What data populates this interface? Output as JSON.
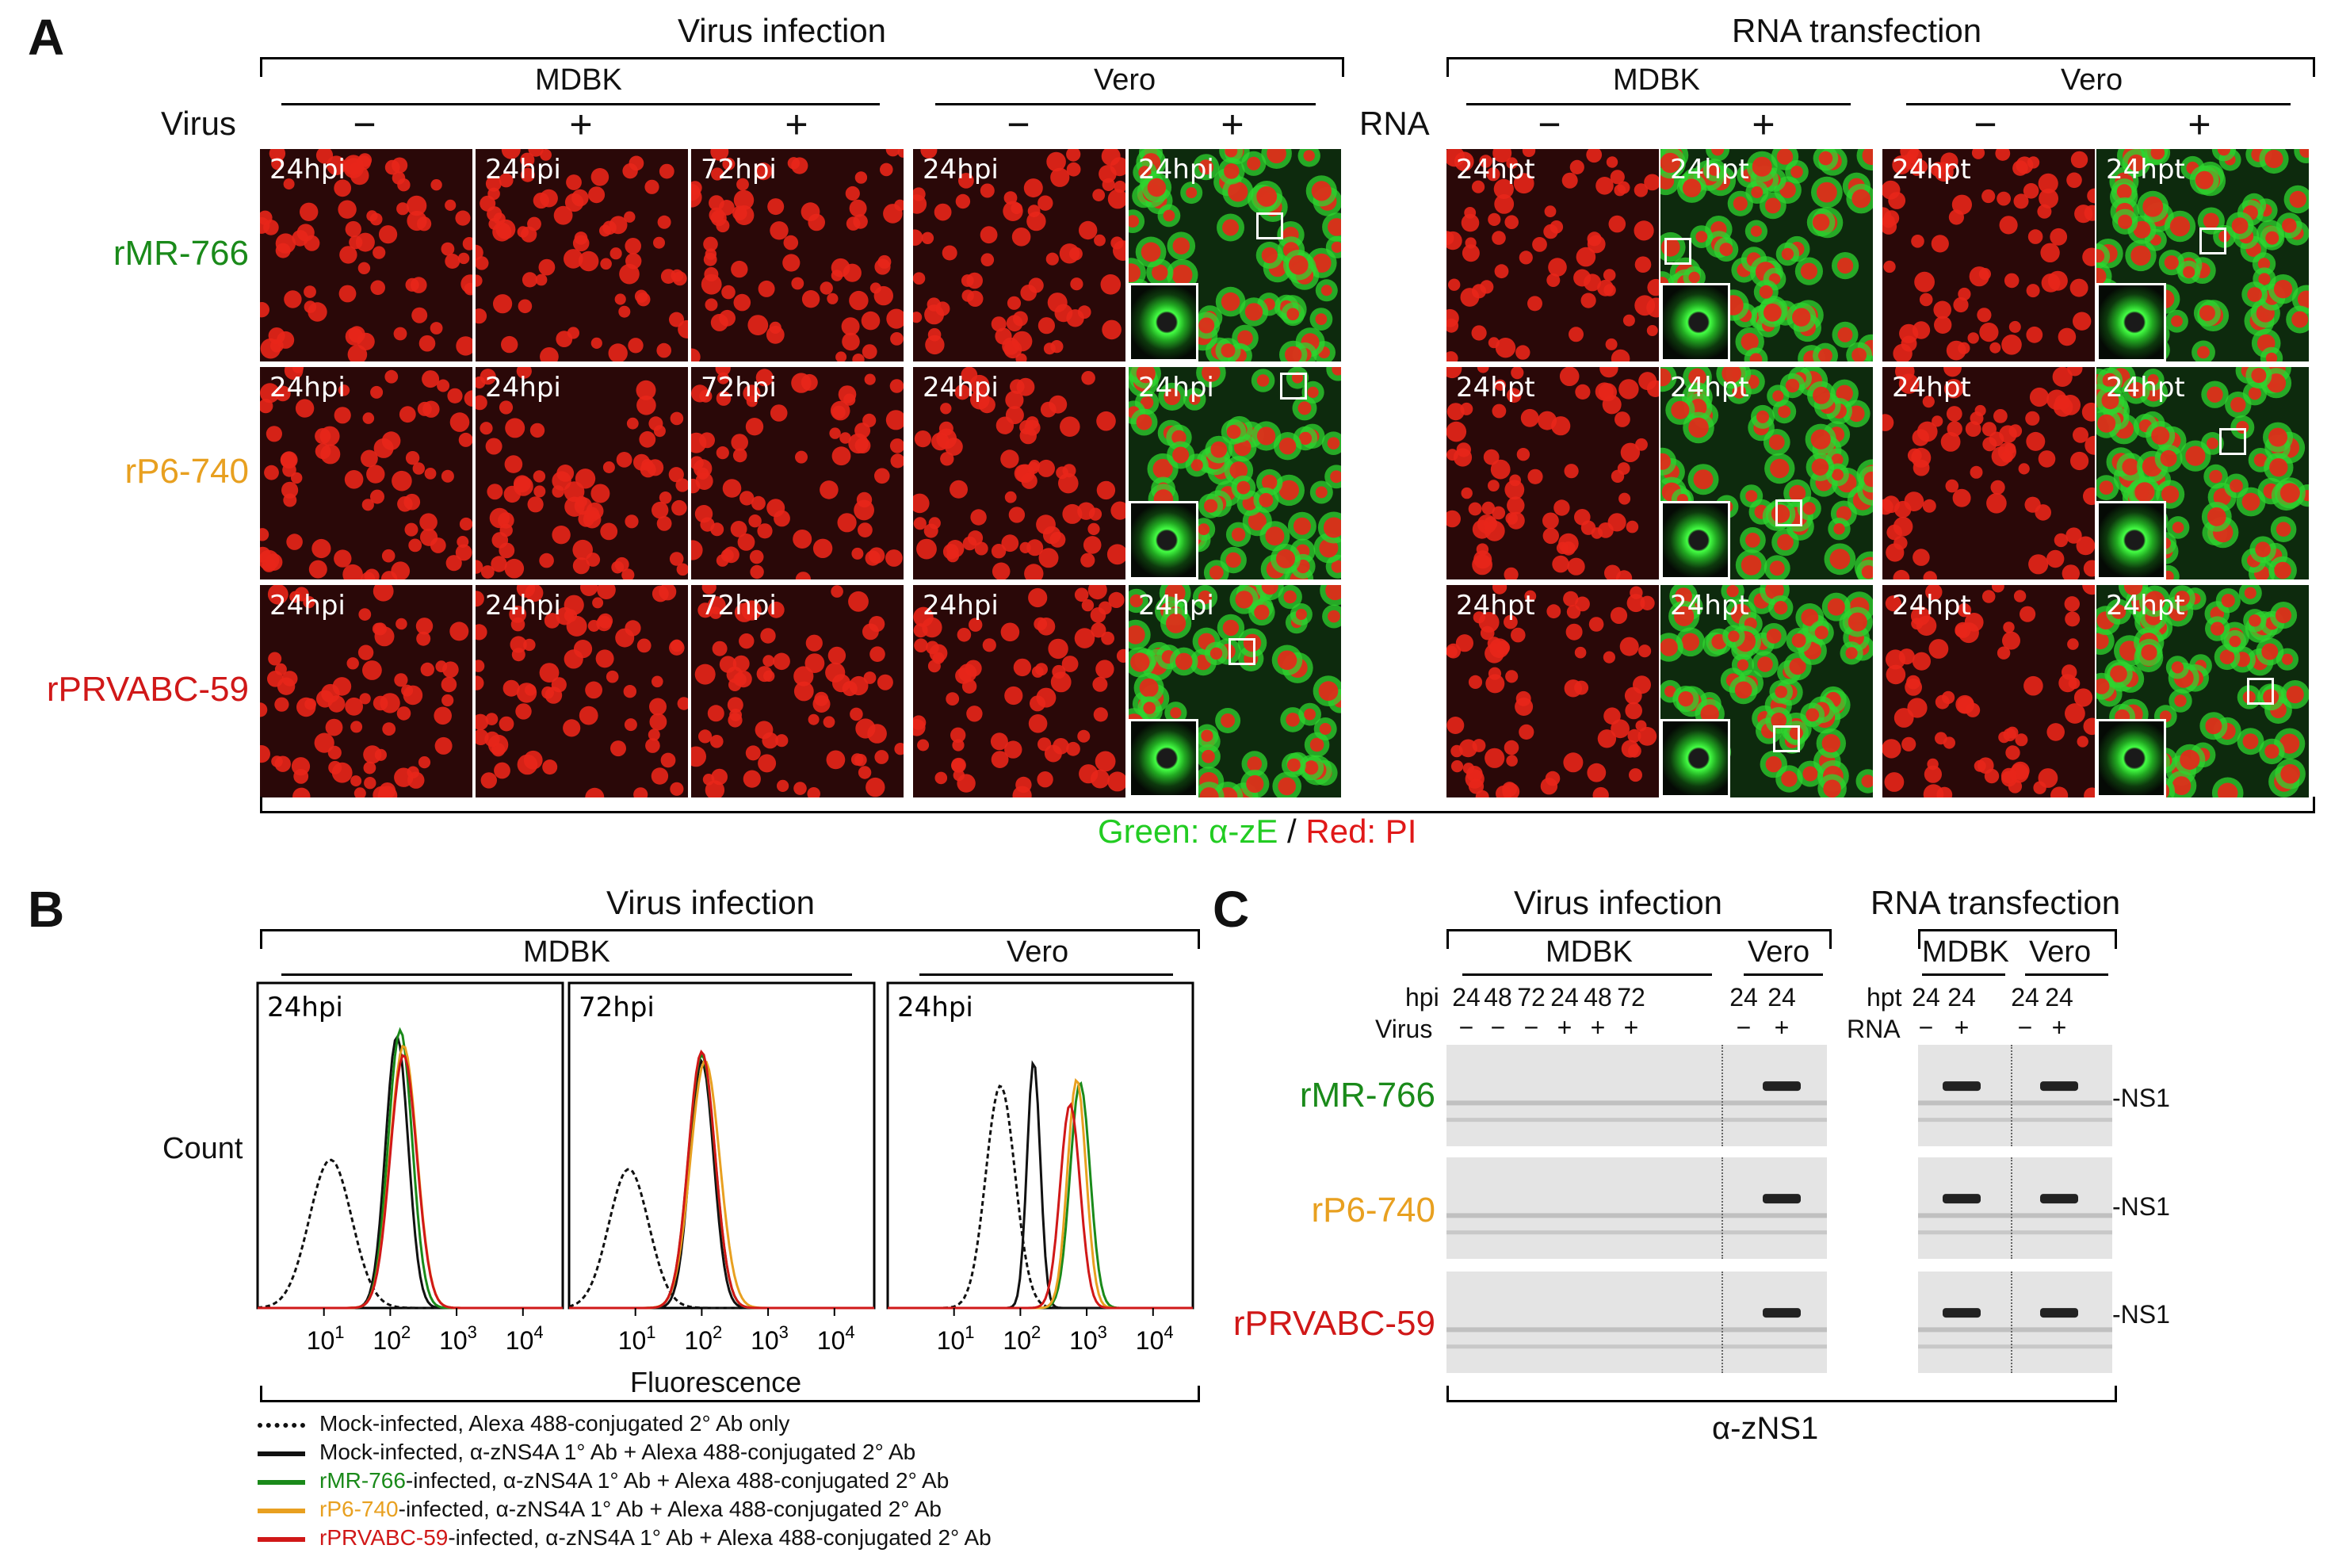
{
  "panel_a": {
    "label": "A",
    "virus_infection": "Virus infection",
    "rna_transfection": "RNA transfection",
    "mdbk": "MDBK",
    "vero": "Vero",
    "virus_row": "Virus",
    "rna_row": "RNA",
    "minus": "−",
    "plus": "+",
    "rows": [
      "rMR-766",
      "rP6-740",
      "rPRVABC-59"
    ],
    "row_colors": [
      "#1a8a1a",
      "#e8a020",
      "#d01818"
    ],
    "hpi24": "24hpi",
    "hpi72": "72hpi",
    "hpt24": "24hpt",
    "caption_green": "Green: α-zE",
    "caption_sep": " / ",
    "caption_red": "Red: PI"
  },
  "panel_b": {
    "label": "B",
    "title": "Virus infection",
    "mdbk": "MDBK",
    "vero": "Vero",
    "plots": [
      "24hpi",
      "72hpi",
      "24hpi"
    ],
    "ylabel": "Count",
    "xlabel": "Fluorescence",
    "tick_base": "10",
    "tick_exps": [
      "1",
      "2",
      "3",
      "4"
    ],
    "legend": [
      {
        "prefix": "",
        "text": "Mock-infected, Alexa 488-conjugated 2° Ab only",
        "color": "#111111",
        "dashed": true
      },
      {
        "prefix": "",
        "text": "Mock-infected, α-zNS4A 1° Ab + Alexa 488-conjugated 2° Ab",
        "color": "#111111",
        "dashed": false
      },
      {
        "prefix": "rMR-766",
        "text": "-infected, α-zNS4A 1° Ab + Alexa 488-conjugated 2° Ab",
        "color": "#1a8a1a",
        "dashed": false
      },
      {
        "prefix": "rP6-740",
        "text": "-infected, α-zNS4A 1° Ab + Alexa 488-conjugated 2° Ab",
        "color": "#e8a020",
        "dashed": false
      },
      {
        "prefix": "rPRVABC-59",
        "text": "-infected, α-zNS4A 1° Ab + Alexa 488-conjugated 2° Ab",
        "color": "#d01818",
        "dashed": false
      }
    ]
  },
  "panel_c": {
    "label": "C",
    "virus_infection": "Virus infection",
    "rna_transfection": "RNA transfection",
    "mdbk": "MDBK",
    "vero": "Vero",
    "hpi": "hpi",
    "virus": "Virus",
    "hpt": "hpt",
    "rna": "RNA",
    "virus_hours": [
      "24",
      "48",
      "72",
      "24",
      "48",
      "72",
      "24",
      "24"
    ],
    "virus_signs": [
      "−",
      "−",
      "−",
      "+",
      "+",
      "+",
      "−",
      "+"
    ],
    "rna_hours": [
      "24",
      "24",
      "24",
      "24"
    ],
    "rna_signs": [
      "−",
      "+",
      "−",
      "+"
    ],
    "rows": [
      "rMR-766",
      "rP6-740",
      "rPRVABC-59"
    ],
    "ns1": "-NS1",
    "antibody": "α-zNS1"
  }
}
